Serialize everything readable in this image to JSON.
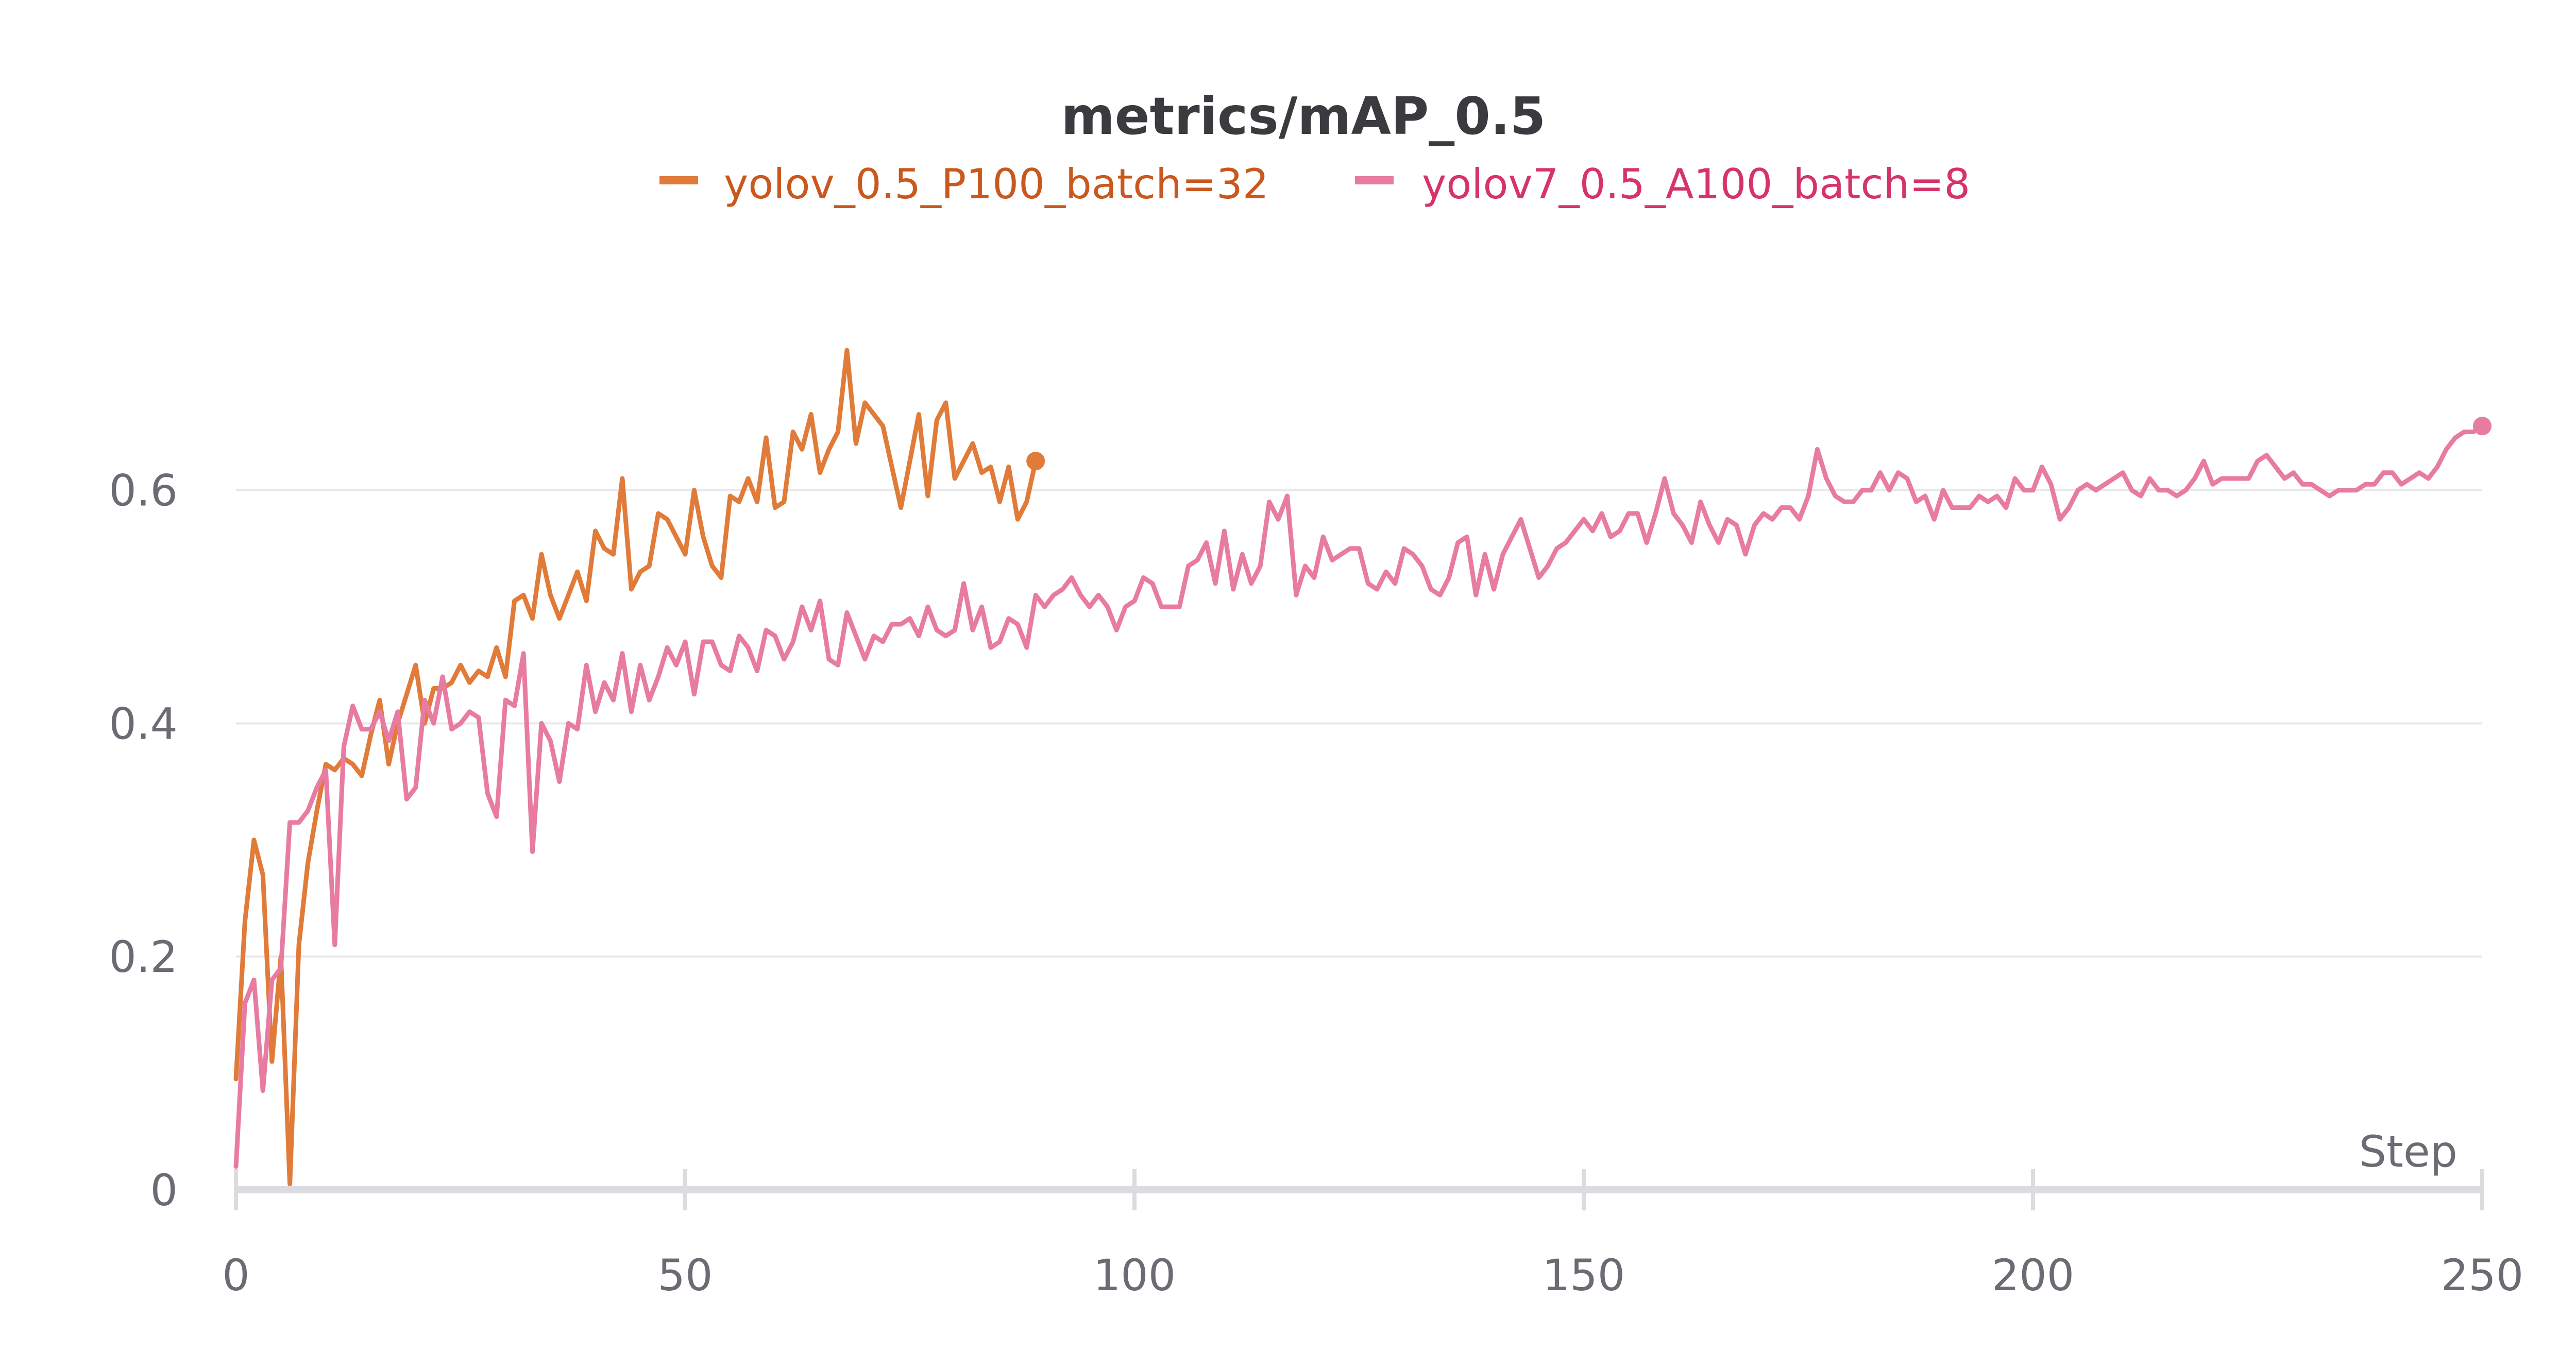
{
  "chart_data": {
    "type": "line",
    "title": "metrics/mAP_0.5",
    "xlabel": "Step",
    "ylabel": "",
    "xlim": [
      0,
      250
    ],
    "ylim": [
      0,
      0.72
    ],
    "xticks": [
      0,
      50,
      100,
      150,
      200,
      250
    ],
    "xtick_labels": [
      "0",
      "50",
      "100",
      "150",
      "200",
      "250"
    ],
    "yticks": [
      0,
      0.2,
      0.4,
      0.6
    ],
    "ytick_labels": [
      "0",
      "0.2",
      "0.4",
      "0.6"
    ],
    "grid": true,
    "legend_position": "top-center",
    "series": [
      {
        "name": "yolov_0.5_P100_batch=32",
        "color": "#e07b39",
        "legend_text_color": "#c9581f",
        "x": [
          0,
          1,
          2,
          3,
          4,
          5,
          6,
          7,
          8,
          9,
          10,
          11,
          12,
          13,
          14,
          15,
          16,
          17,
          18,
          19,
          20,
          21,
          22,
          23,
          24,
          25,
          26,
          27,
          28,
          29,
          30,
          31,
          32,
          33,
          34,
          35,
          36,
          37,
          38,
          39,
          40,
          41,
          42,
          43,
          44,
          45,
          46,
          47,
          48,
          49,
          50,
          51,
          52,
          53,
          54,
          55,
          56,
          57,
          58,
          59,
          60,
          61,
          62,
          63,
          64,
          65,
          66,
          67,
          68,
          69,
          70,
          71,
          72,
          73,
          74,
          75,
          76,
          77,
          78,
          79,
          80,
          81,
          82,
          83,
          84,
          85,
          86,
          87,
          88,
          89
        ],
        "y": [
          0.095,
          0.23,
          0.3,
          0.27,
          0.11,
          0.2,
          0.005,
          0.21,
          0.28,
          0.325,
          0.365,
          0.36,
          0.37,
          0.365,
          0.355,
          0.39,
          0.42,
          0.365,
          0.4,
          0.425,
          0.45,
          0.4,
          0.43,
          0.43,
          0.435,
          0.45,
          0.435,
          0.445,
          0.44,
          0.465,
          0.44,
          0.505,
          0.51,
          0.49,
          0.545,
          0.51,
          0.49,
          0.51,
          0.53,
          0.505,
          0.565,
          0.55,
          0.545,
          0.61,
          0.515,
          0.53,
          0.535,
          0.58,
          0.575,
          0.56,
          0.545,
          0.6,
          0.56,
          0.535,
          0.525,
          0.595,
          0.59,
          0.61,
          0.59,
          0.645,
          0.585,
          0.59,
          0.65,
          0.635,
          0.665,
          0.615,
          0.635,
          0.65,
          0.72,
          0.64,
          0.675,
          0.665,
          0.655,
          0.62,
          0.585,
          0.625,
          0.665,
          0.595,
          0.66,
          0.675,
          0.61,
          0.625,
          0.64,
          0.615,
          0.62,
          0.59,
          0.62,
          0.575,
          0.59,
          0.625
        ]
      },
      {
        "name": "yolov7_0.5_A100_batch=8",
        "color": "#e87ba2",
        "legend_text_color": "#d6336c",
        "x": [
          0,
          1,
          2,
          3,
          4,
          5,
          6,
          7,
          8,
          9,
          10,
          11,
          12,
          13,
          14,
          15,
          16,
          17,
          18,
          19,
          20,
          21,
          22,
          23,
          24,
          25,
          26,
          27,
          28,
          29,
          30,
          31,
          32,
          33,
          34,
          35,
          36,
          37,
          38,
          39,
          40,
          41,
          42,
          43,
          44,
          45,
          46,
          47,
          48,
          49,
          50,
          51,
          52,
          53,
          54,
          55,
          56,
          57,
          58,
          59,
          60,
          61,
          62,
          63,
          64,
          65,
          66,
          67,
          68,
          69,
          70,
          71,
          72,
          73,
          74,
          75,
          76,
          77,
          78,
          79,
          80,
          81,
          82,
          83,
          84,
          85,
          86,
          87,
          88,
          89,
          90,
          91,
          92,
          93,
          94,
          95,
          96,
          97,
          98,
          99,
          100,
          101,
          102,
          103,
          104,
          105,
          106,
          107,
          108,
          109,
          110,
          111,
          112,
          113,
          114,
          115,
          116,
          117,
          118,
          119,
          120,
          121,
          122,
          123,
          124,
          125,
          126,
          127,
          128,
          129,
          130,
          131,
          132,
          133,
          134,
          135,
          136,
          137,
          138,
          139,
          140,
          141,
          142,
          143,
          144,
          145,
          146,
          147,
          148,
          149,
          150,
          151,
          152,
          153,
          154,
          155,
          156,
          157,
          158,
          159,
          160,
          161,
          162,
          163,
          164,
          165,
          166,
          167,
          168,
          169,
          170,
          171,
          172,
          173,
          174,
          175,
          176,
          177,
          178,
          179,
          180,
          181,
          182,
          183,
          184,
          185,
          186,
          187,
          188,
          189,
          190,
          191,
          192,
          193,
          194,
          195,
          196,
          197,
          198,
          199,
          200,
          201,
          202,
          203,
          204,
          205,
          206,
          207,
          208,
          209,
          210,
          211,
          212,
          213,
          214,
          215,
          216,
          217,
          218,
          219,
          220,
          221,
          222,
          223,
          224,
          225,
          226,
          227,
          228,
          229,
          230,
          231,
          232,
          233,
          234,
          235,
          236,
          237,
          238,
          239,
          240,
          241,
          242,
          243,
          244,
          245,
          246,
          247,
          248,
          249,
          250
        ],
        "y": [
          0.02,
          0.16,
          0.18,
          0.085,
          0.18,
          0.19,
          0.315,
          0.315,
          0.325,
          0.345,
          0.36,
          0.21,
          0.38,
          0.415,
          0.395,
          0.395,
          0.41,
          0.385,
          0.41,
          0.335,
          0.345,
          0.42,
          0.4,
          0.44,
          0.395,
          0.4,
          0.41,
          0.405,
          0.34,
          0.32,
          0.42,
          0.415,
          0.46,
          0.29,
          0.4,
          0.385,
          0.35,
          0.4,
          0.395,
          0.45,
          0.41,
          0.435,
          0.42,
          0.46,
          0.41,
          0.45,
          0.42,
          0.44,
          0.465,
          0.45,
          0.47,
          0.425,
          0.47,
          0.47,
          0.45,
          0.445,
          0.475,
          0.465,
          0.445,
          0.48,
          0.475,
          0.455,
          0.47,
          0.5,
          0.48,
          0.505,
          0.455,
          0.45,
          0.495,
          0.475,
          0.455,
          0.475,
          0.47,
          0.485,
          0.485,
          0.49,
          0.475,
          0.5,
          0.48,
          0.475,
          0.48,
          0.52,
          0.48,
          0.5,
          0.465,
          0.47,
          0.49,
          0.485,
          0.465,
          0.51,
          0.5,
          0.51,
          0.515,
          0.525,
          0.51,
          0.5,
          0.51,
          0.5,
          0.48,
          0.5,
          0.505,
          0.525,
          0.52,
          0.5,
          0.5,
          0.5,
          0.535,
          0.54,
          0.555,
          0.52,
          0.565,
          0.515,
          0.545,
          0.52,
          0.535,
          0.59,
          0.575,
          0.595,
          0.51,
          0.535,
          0.525,
          0.56,
          0.54,
          0.545,
          0.55,
          0.55,
          0.52,
          0.515,
          0.53,
          0.52,
          0.55,
          0.545,
          0.535,
          0.515,
          0.51,
          0.525,
          0.555,
          0.56,
          0.51,
          0.545,
          0.515,
          0.545,
          0.56,
          0.575,
          0.55,
          0.525,
          0.535,
          0.55,
          0.555,
          0.565,
          0.575,
          0.565,
          0.58,
          0.56,
          0.565,
          0.58,
          0.58,
          0.555,
          0.58,
          0.61,
          0.58,
          0.57,
          0.555,
          0.59,
          0.57,
          0.555,
          0.575,
          0.57,
          0.545,
          0.57,
          0.58,
          0.575,
          0.585,
          0.585,
          0.575,
          0.595,
          0.635,
          0.61,
          0.595,
          0.59,
          0.59,
          0.6,
          0.6,
          0.615,
          0.6,
          0.615,
          0.61,
          0.59,
          0.595,
          0.575,
          0.6,
          0.585,
          0.585,
          0.585,
          0.595,
          0.59,
          0.595,
          0.585,
          0.61,
          0.6,
          0.6,
          0.62,
          0.605,
          0.575,
          0.585,
          0.6,
          0.605,
          0.6,
          0.605,
          0.61,
          0.615,
          0.6,
          0.595,
          0.61,
          0.6,
          0.6,
          0.595,
          0.6,
          0.61,
          0.625,
          0.605,
          0.61,
          0.61,
          0.61,
          0.61,
          0.625,
          0.63,
          0.62,
          0.61,
          0.615,
          0.605,
          0.605,
          0.6,
          0.595,
          0.6,
          0.6,
          0.6,
          0.605,
          0.605,
          0.615,
          0.615,
          0.605,
          0.61,
          0.615,
          0.61,
          0.62,
          0.635,
          0.645,
          0.65,
          0.65,
          0.655
        ]
      }
    ]
  }
}
